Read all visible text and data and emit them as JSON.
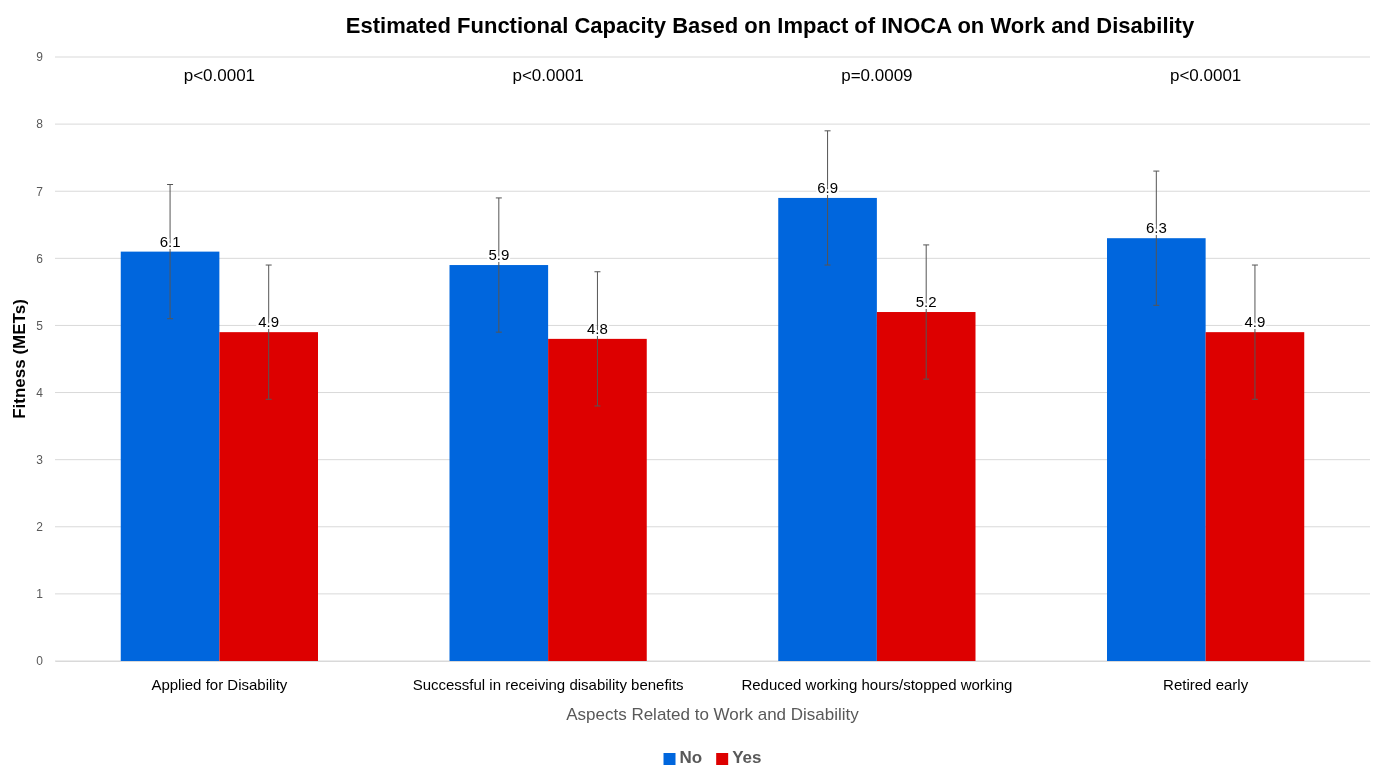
{
  "chart_data": {
    "type": "bar",
    "title": "Estimated Functional Capacity Based on Impact of INOCA on Work and Disability",
    "xlabel": "Aspects Related to Work and Disability",
    "ylabel": "Fitness (METs)",
    "categories": [
      "Applied for Disability",
      "Successful in receiving disability benefits",
      "Reduced working hours/stopped working",
      "Retired early"
    ],
    "series": [
      {
        "name": "No",
        "color": "#0066dd",
        "values": [
          6.1,
          5.9,
          6.9,
          6.3
        ],
        "errors": [
          1,
          1,
          1,
          1
        ]
      },
      {
        "name": "Yes",
        "color": "#dd0000",
        "values": [
          4.9,
          4.8,
          5.2,
          4.9
        ],
        "errors": [
          1,
          1,
          1,
          1
        ]
      }
    ],
    "ylim": [
      0,
      9
    ],
    "yticks": [
      0,
      1,
      2,
      3,
      4,
      5,
      6,
      7,
      8,
      9
    ],
    "grid": "y",
    "legend": "bottom",
    "data_labels": true,
    "annotations": [
      "p<0.0001",
      "p<0.0001",
      "p=0.0009",
      "p<0.0001"
    ]
  }
}
